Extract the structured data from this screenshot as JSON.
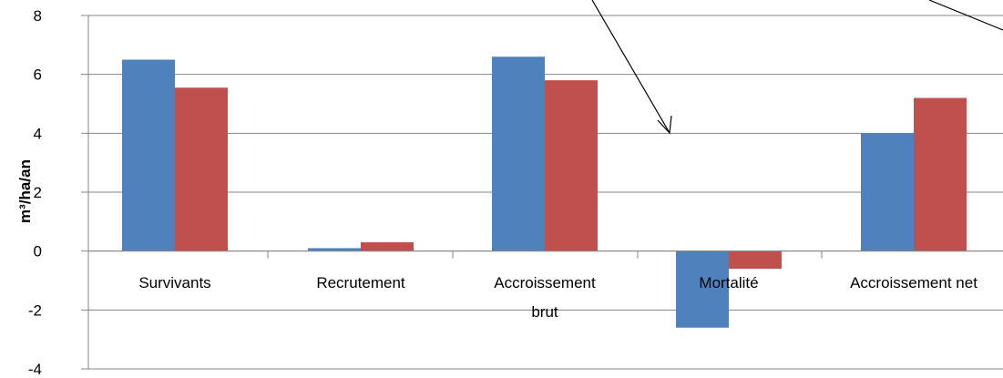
{
  "chart_data": {
    "type": "bar",
    "title": "",
    "xlabel": "",
    "ylabel": "m³/ha/an",
    "ylim": [
      -4,
      8
    ],
    "yticks": [
      -4,
      -2,
      0,
      2,
      4,
      6,
      8
    ],
    "grid": true,
    "categories": [
      [
        "Survivants"
      ],
      [
        "Recrutement"
      ],
      [
        "Accroissement",
        "brut"
      ],
      [
        "Mortalité"
      ],
      [
        "Accroissement net"
      ]
    ],
    "series": [
      {
        "values": [
          6.5,
          0.1,
          6.6,
          -2.6,
          4.0
        ]
      },
      {
        "values": [
          5.55,
          0.3,
          5.8,
          -0.6,
          5.2
        ]
      }
    ],
    "colors": [
      "#4f81bd",
      "#c0504d"
    ],
    "annotations": [
      {
        "type": "arrow",
        "points_to": "Mortalité"
      },
      {
        "type": "line",
        "note": "partial arrow at top-right"
      }
    ]
  }
}
